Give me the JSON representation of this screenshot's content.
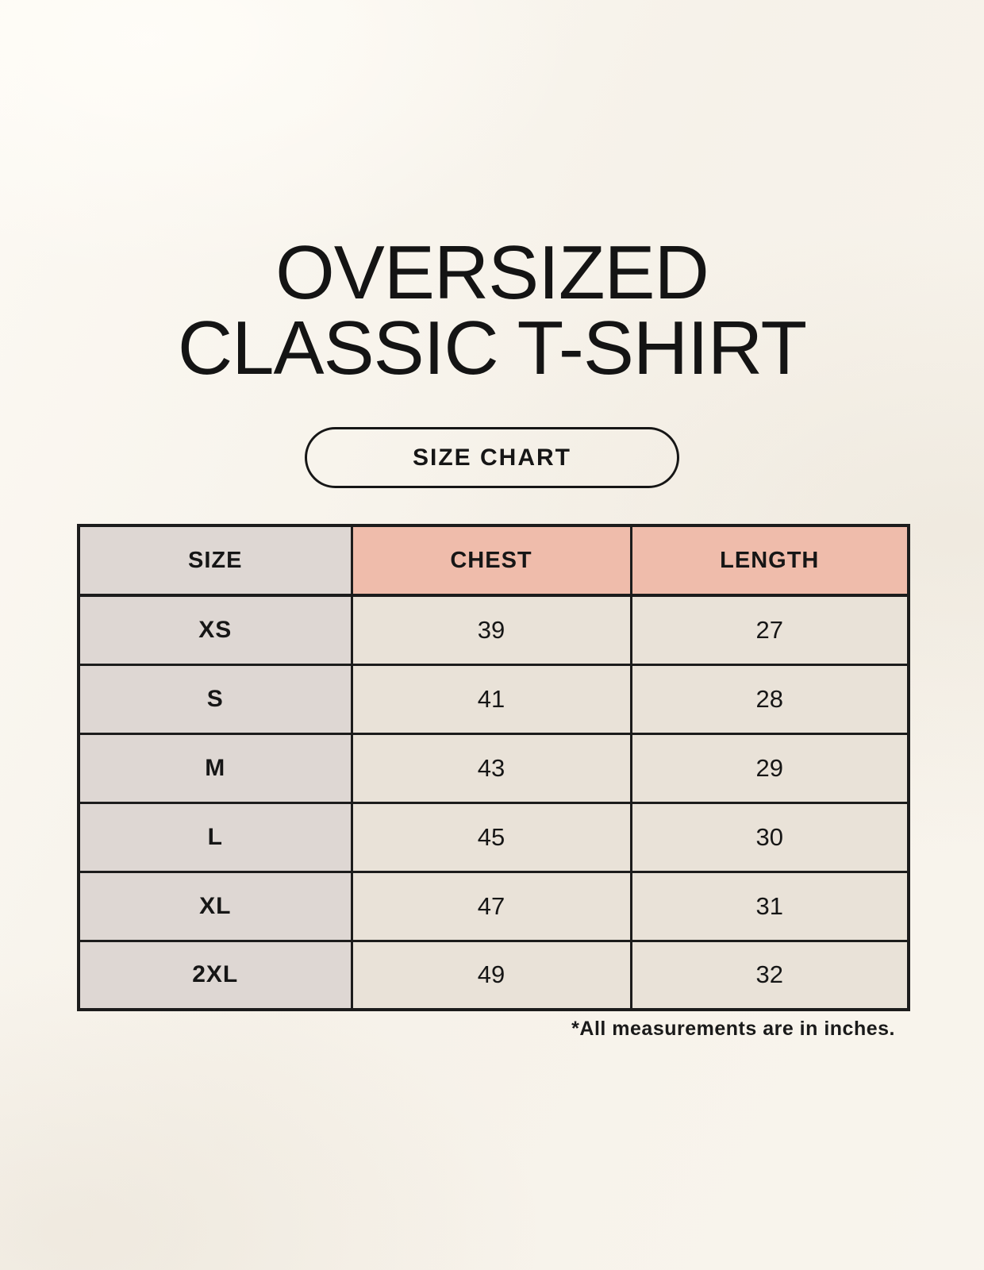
{
  "page": {
    "title_line1": "OVERSIZED",
    "title_line2": "CLASSIC T-SHIRT",
    "button_label": "SIZE CHART",
    "footnote": "*All measurements are in inches."
  },
  "table": {
    "headers": [
      "SIZE",
      "CHEST",
      "LENGTH"
    ],
    "rows": [
      {
        "size": "XS",
        "chest": "39",
        "length": "27"
      },
      {
        "size": "S",
        "chest": "41",
        "length": "28"
      },
      {
        "size": "M",
        "chest": "43",
        "length": "29"
      },
      {
        "size": "L",
        "chest": "45",
        "length": "30"
      },
      {
        "size": "XL",
        "chest": "47",
        "length": "31"
      },
      {
        "size": "2XL",
        "chest": "49",
        "length": "32"
      }
    ],
    "units": "inches"
  },
  "colors": {
    "background": "#f8f4ec",
    "accent_salmon": "#efbcab",
    "size_column_gray": "#ded7d3",
    "cell_cream": "#e9e2d8",
    "border": "#1c1c1c",
    "text": "#141414"
  }
}
